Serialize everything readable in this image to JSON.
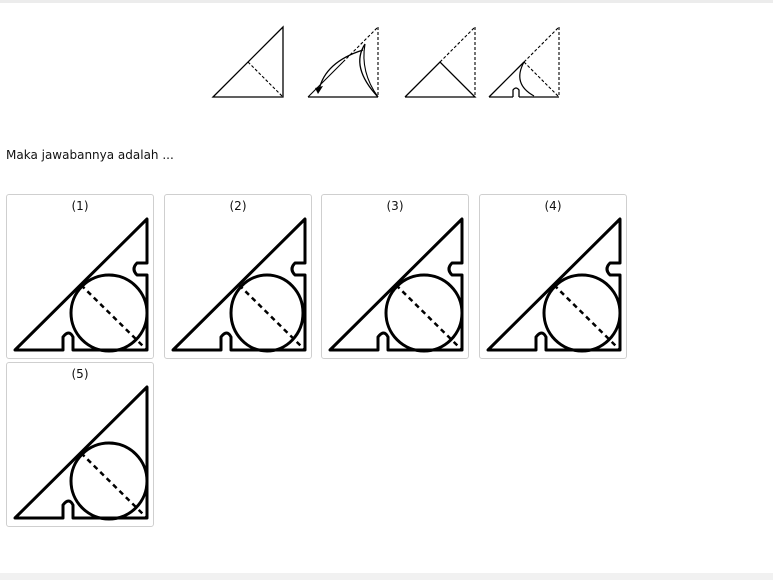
{
  "question": {
    "prompt": "Maka jawabannya adalah ..."
  },
  "fold_sequence_icons": [
    "fold-step-1-icon",
    "fold-step-2-icon",
    "fold-step-3-icon",
    "fold-step-4-icon"
  ],
  "options": [
    {
      "label": "(1)",
      "notch_right": true,
      "diagonal_dashed": true
    },
    {
      "label": "(2)",
      "notch_right": true,
      "diagonal_dashed": true
    },
    {
      "label": "(3)",
      "notch_right": true,
      "diagonal_dashed": true
    },
    {
      "label": "(4)",
      "notch_right": true,
      "diagonal_dashed": true
    },
    {
      "label": "(5)",
      "notch_right": false,
      "diagonal_dashed": true
    }
  ],
  "colors": {
    "border": "#cfcfcf",
    "stroke": "#000000"
  }
}
